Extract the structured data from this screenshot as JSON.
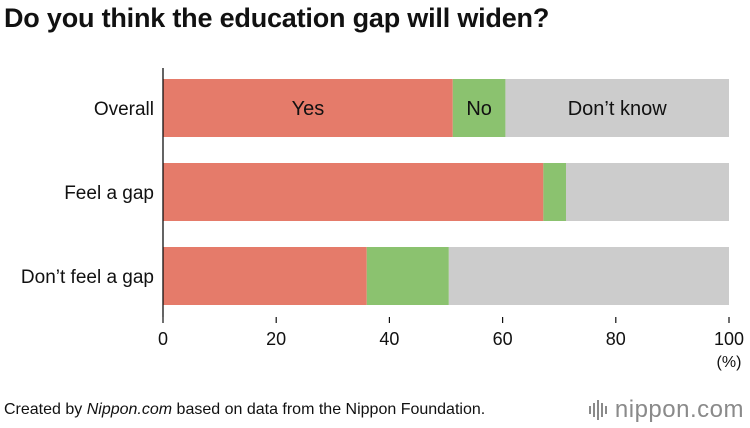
{
  "title": "Do you think the education gap will widen?",
  "chart_data": {
    "type": "bar",
    "orientation": "horizontal",
    "stacked": true,
    "categories": [
      "Overall",
      "Feel a gap",
      "Don’t feel a gap"
    ],
    "series": [
      {
        "name": "Yes",
        "values": [
          51.2,
          67.2,
          36.0
        ],
        "color": "#e57b6a"
      },
      {
        "name": "No",
        "values": [
          9.3,
          4.0,
          14.5
        ],
        "color": "#8bc26f"
      },
      {
        "name": "Don’t know",
        "values": [
          39.5,
          28.8,
          49.5
        ],
        "color": "#cccccc"
      }
    ],
    "xlim": [
      0,
      100
    ],
    "xticks": [
      0,
      20,
      40,
      60,
      80,
      100
    ],
    "xunit": "(%)",
    "grid": false
  },
  "footer": {
    "prefix": "Created by ",
    "source": "Nippon.com",
    "suffix": " based on data from the Nippon Foundation."
  },
  "logo": {
    "name": "nippon",
    "suffix": ".com"
  }
}
